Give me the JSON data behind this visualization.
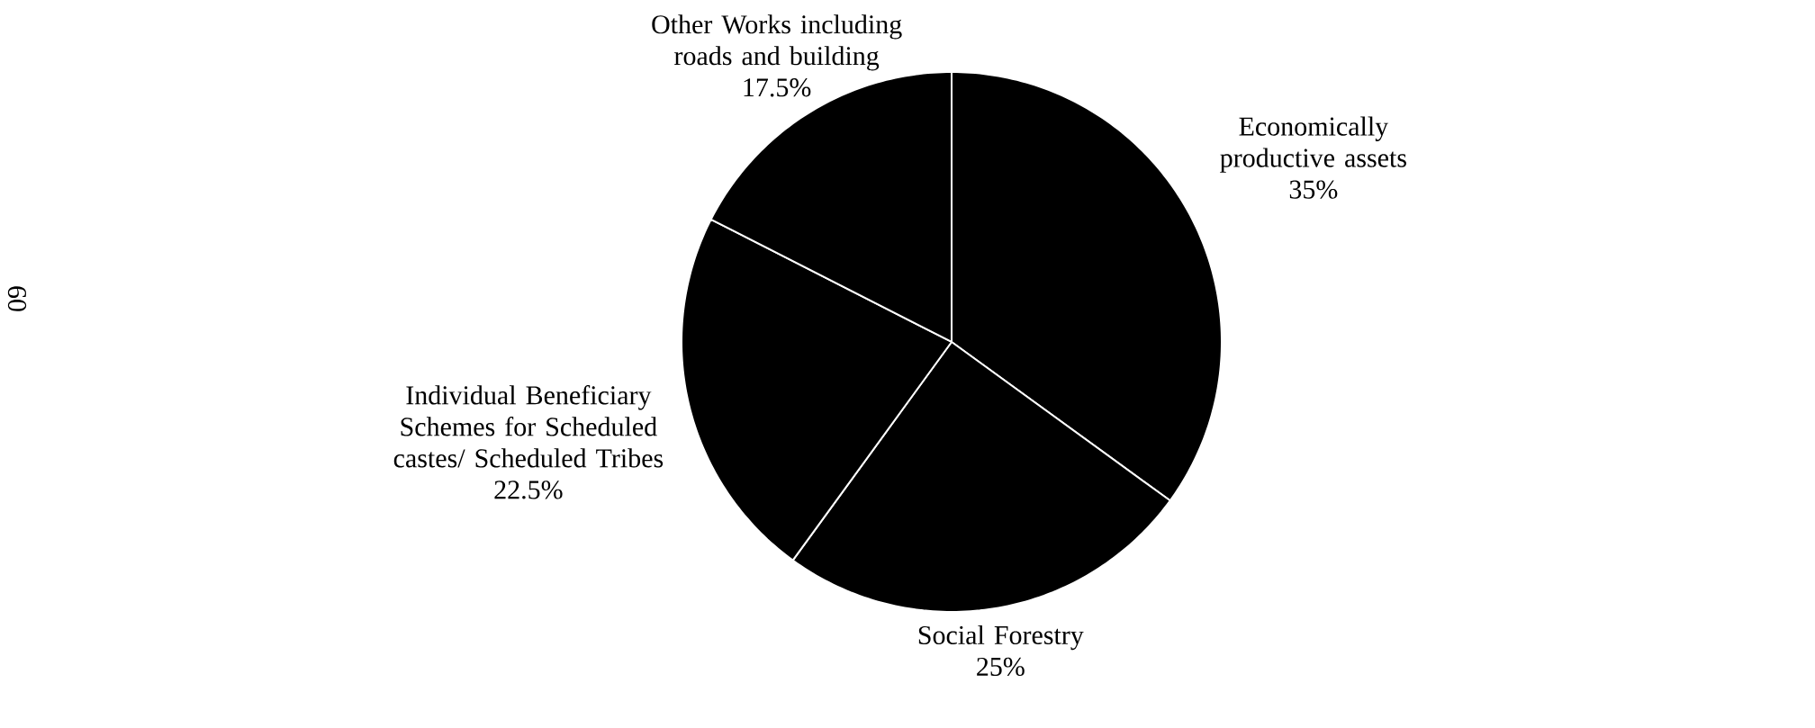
{
  "chart_data": {
    "type": "pie",
    "categories": [
      "Economically productive assets",
      "Social Forestry",
      "Individual Beneficiary Schemes for Scheduled castes/ Scheduled Tribes",
      "Other Works including roads and building"
    ],
    "values": [
      35,
      25,
      22.5,
      17.5
    ],
    "value_labels": [
      "35%",
      "25%",
      "22.5%",
      "17.5%"
    ],
    "colors": [
      "#000000",
      "#000000",
      "#000000",
      "#000000"
    ],
    "annotations": [
      "60"
    ]
  }
}
